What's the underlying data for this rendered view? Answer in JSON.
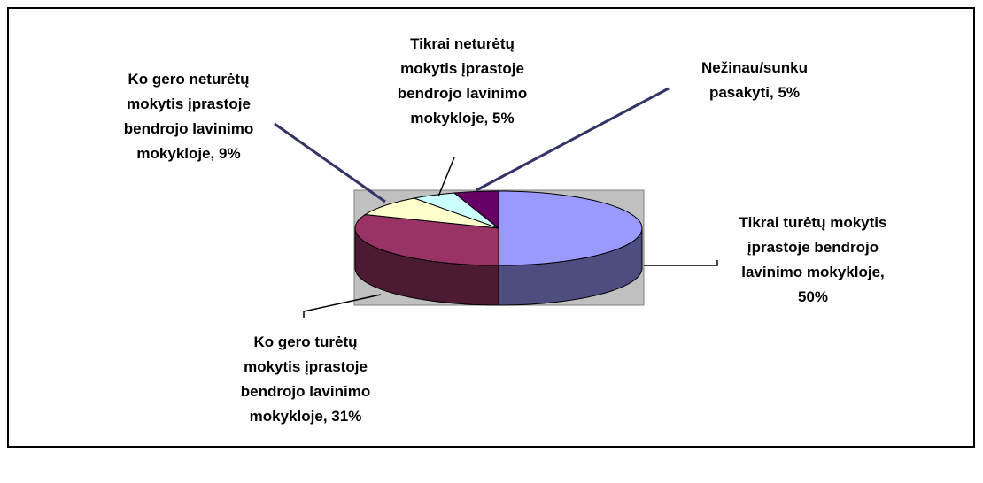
{
  "chart_data": {
    "type": "pie3d",
    "categories": [
      "Tikrai turėtų mokytis įprastoje bendrojo lavinimo mokykloje,",
      "Ko gero turėtų mokytis įprastoje bendrojo lavinimo mokykloje,",
      "Ko gero neturėtų mokytis įprastoje bendrojo lavinimo mokykloje,",
      "Tikrai neturėtų mokytis įprastoje bendrojo lavinimo mokykloje,",
      "Nežinau/sunku pasakyti,"
    ],
    "values": [
      50,
      31,
      9,
      5,
      5
    ],
    "value_labels": [
      "50%",
      "31%",
      "9%",
      "5%",
      "5%"
    ],
    "colors": [
      "#9999ff",
      "#993366",
      "#ffffcc",
      "#ccffff",
      "#660066"
    ]
  }
}
